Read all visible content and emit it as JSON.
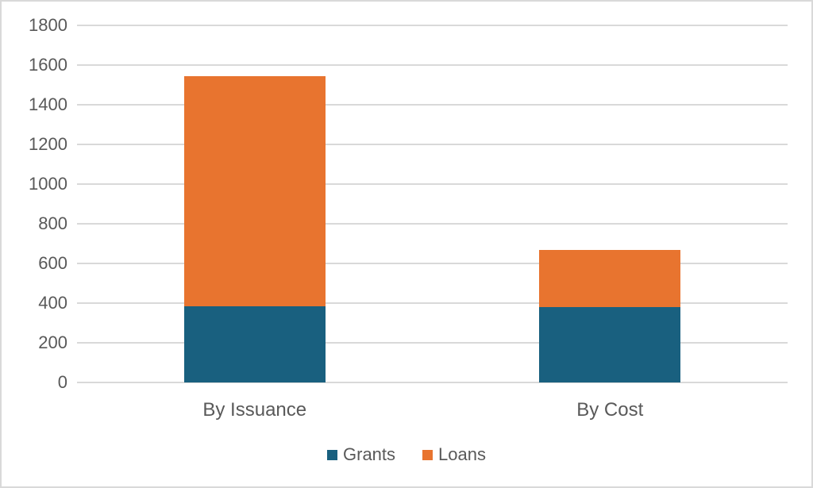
{
  "chart_data": {
    "type": "bar",
    "stacked": true,
    "title": "",
    "xlabel": "",
    "ylabel": "",
    "categories": [
      "By Issuance",
      "By Cost"
    ],
    "series": [
      {
        "name": "Grants",
        "color": "#19607F",
        "values": [
          385,
          380
        ]
      },
      {
        "name": "Loans",
        "color": "#E8742F",
        "values": [
          1160,
          290
        ]
      }
    ],
    "stack_totals": [
      1545,
      670
    ],
    "ylim": [
      0,
      1800
    ],
    "yticks": [
      0,
      200,
      400,
      600,
      800,
      1000,
      1200,
      1400,
      1600,
      1800
    ],
    "grid": true,
    "legend_position": "bottom"
  },
  "style": {
    "gridline_color": "#d9d9d9",
    "frame_border_color": "#d9d9d9",
    "axis_text_color": "#595959",
    "background_color": "#ffffff"
  }
}
